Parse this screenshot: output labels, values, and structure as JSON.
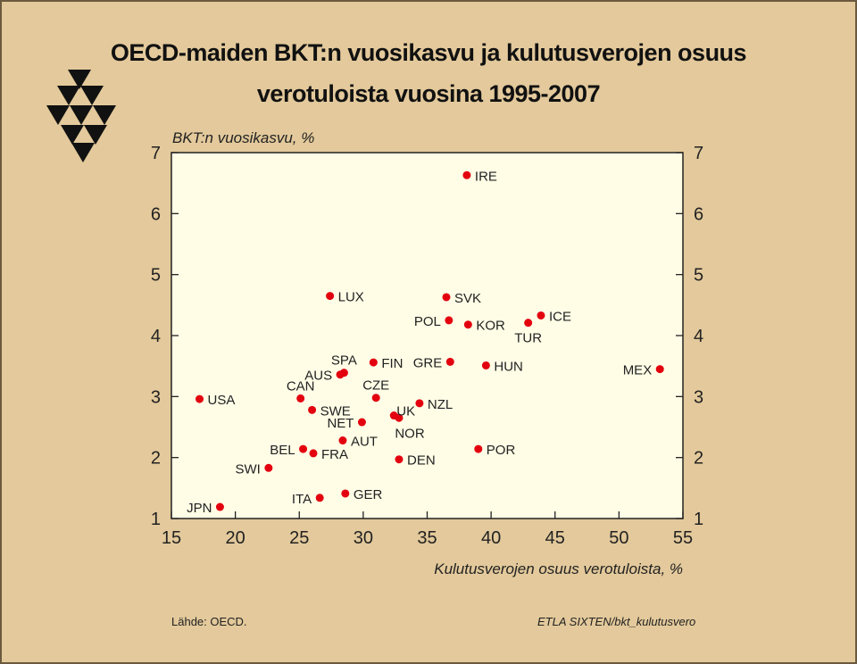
{
  "title_line1": "OECD-maiden BKT:n vuosikasvu ja kulutusverojen osuus",
  "title_line2": "verotuloista vuosina 1995-2007",
  "source": "Lähde:   OECD.",
  "credit": "ETLA  SIXTEN/bkt_kulutusvero",
  "colors": {
    "background": "#e3c99b",
    "plot_bg": "#fffde6",
    "point": "#e3000f",
    "logo": "#111111"
  },
  "chart_data": {
    "type": "scatter",
    "xlabel": "Kulutusverojen osuus verotuloista, %",
    "ylabel": "BKT:n vuosikasvu, %",
    "xlim": [
      15,
      55
    ],
    "ylim": [
      1,
      7
    ],
    "xticks": [
      15,
      20,
      25,
      30,
      35,
      40,
      45,
      50,
      55
    ],
    "yticks": [
      1,
      2,
      3,
      4,
      5,
      6,
      7
    ],
    "grid": false,
    "points": [
      {
        "label": "IRE",
        "x": 38.1,
        "y": 6.63
      },
      {
        "label": "LUX",
        "x": 27.4,
        "y": 4.65
      },
      {
        "label": "SVK",
        "x": 36.5,
        "y": 4.63
      },
      {
        "label": "POL",
        "x": 36.7,
        "y": 4.25
      },
      {
        "label": "KOR",
        "x": 38.2,
        "y": 4.18
      },
      {
        "label": "TUR",
        "x": 42.9,
        "y": 4.21
      },
      {
        "label": "ICE",
        "x": 43.9,
        "y": 4.33
      },
      {
        "label": "SPA",
        "x": 28.5,
        "y": 3.39
      },
      {
        "label": "AUS",
        "x": 28.2,
        "y": 3.36
      },
      {
        "label": "FIN",
        "x": 30.8,
        "y": 3.56
      },
      {
        "label": "GRE",
        "x": 36.8,
        "y": 3.57
      },
      {
        "label": "HUN",
        "x": 39.6,
        "y": 3.51
      },
      {
        "label": "MEX",
        "x": 53.2,
        "y": 3.45
      },
      {
        "label": "USA",
        "x": 17.2,
        "y": 2.96
      },
      {
        "label": "CAN",
        "x": 25.1,
        "y": 2.97
      },
      {
        "label": "CZE",
        "x": 31.0,
        "y": 2.98
      },
      {
        "label": "SWE",
        "x": 26.0,
        "y": 2.78
      },
      {
        "label": "UK",
        "x": 32.4,
        "y": 2.69
      },
      {
        "label": "NOR",
        "x": 32.8,
        "y": 2.65
      },
      {
        "label": "NZL",
        "x": 34.4,
        "y": 2.89
      },
      {
        "label": "NET",
        "x": 29.9,
        "y": 2.58
      },
      {
        "label": "AUT",
        "x": 28.4,
        "y": 2.28
      },
      {
        "label": "BEL",
        "x": 25.3,
        "y": 2.14
      },
      {
        "label": "FRA",
        "x": 26.1,
        "y": 2.07
      },
      {
        "label": "POR",
        "x": 39.0,
        "y": 2.14
      },
      {
        "label": "DEN",
        "x": 32.8,
        "y": 1.97
      },
      {
        "label": "SWI",
        "x": 22.6,
        "y": 1.83
      },
      {
        "label": "GER",
        "x": 28.6,
        "y": 1.41
      },
      {
        "label": "ITA",
        "x": 26.6,
        "y": 1.34
      },
      {
        "label": "JPN",
        "x": 18.8,
        "y": 1.19
      }
    ]
  }
}
